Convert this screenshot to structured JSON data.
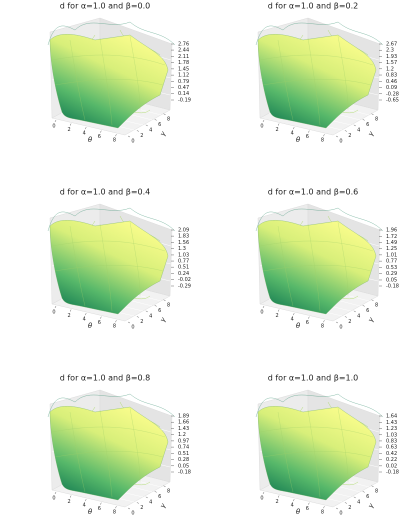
{
  "chart_data": [
    {
      "type": "surface",
      "title": "d for α=1.0 and β=0.0",
      "xlabel": "θ",
      "ylabel": "γ",
      "xlim": [
        0,
        9
      ],
      "xticks": [
        0,
        2,
        4,
        6,
        8
      ],
      "ylim": [
        0,
        9
      ],
      "yticks": [
        0,
        2,
        4,
        6,
        8
      ],
      "zlim": [
        -0.19,
        2.76
      ],
      "zticks": [
        2.76,
        2.44,
        2.11,
        1.78,
        1.45,
        1.12,
        0.79,
        0.47,
        0.14,
        -0.19
      ]
    },
    {
      "type": "surface",
      "title": "d for α=1.0 and β=0.2",
      "xlabel": "θ",
      "ylabel": "γ",
      "xlim": [
        0,
        9
      ],
      "xticks": [
        0,
        2,
        4,
        6,
        8
      ],
      "ylim": [
        0,
        9
      ],
      "yticks": [
        0,
        2,
        4,
        6,
        8
      ],
      "zlim": [
        -0.65,
        2.67
      ],
      "zticks": [
        2.67,
        2.3,
        1.93,
        1.57,
        1.2,
        0.83,
        0.46,
        0.09,
        -0.28,
        -0.65
      ]
    },
    {
      "type": "surface",
      "title": "d for α=1.0 and β=0.4",
      "xlabel": "θ",
      "ylabel": "γ",
      "xlim": [
        0,
        9
      ],
      "xticks": [
        0,
        2,
        4,
        6,
        8
      ],
      "ylim": [
        0,
        9
      ],
      "yticks": [
        0,
        2,
        4,
        6,
        8
      ],
      "zlim": [
        -0.29,
        2.09
      ],
      "zticks": [
        2.09,
        1.83,
        1.56,
        1.3,
        1.03,
        0.77,
        0.51,
        0.24,
        -0.02,
        -0.29
      ]
    },
    {
      "type": "surface",
      "title": "d for α=1.0 and β=0.6",
      "xlabel": "θ",
      "ylabel": "γ",
      "xlim": [
        0,
        9
      ],
      "xticks": [
        0,
        2,
        4,
        6,
        8
      ],
      "ylim": [
        0,
        9
      ],
      "yticks": [
        0,
        2,
        4,
        6,
        8
      ],
      "zlim": [
        -0.18,
        1.96
      ],
      "zticks": [
        1.96,
        1.72,
        1.49,
        1.25,
        1.01,
        0.77,
        0.53,
        0.29,
        0.05,
        -0.18
      ]
    },
    {
      "type": "surface",
      "title": "d for α=1.0 and β=0.8",
      "xlabel": "θ",
      "ylabel": "γ",
      "xlim": [
        0,
        9
      ],
      "xticks": [
        0,
        2,
        4,
        6,
        8
      ],
      "ylim": [
        0,
        9
      ],
      "yticks": [
        0,
        2,
        4,
        6,
        8
      ],
      "zlim": [
        -0.18,
        1.89
      ],
      "zticks": [
        1.89,
        1.66,
        1.43,
        1.2,
        0.97,
        0.74,
        0.51,
        0.28,
        0.05,
        -0.18
      ]
    },
    {
      "type": "surface",
      "title": "d for α=1.0 and β=1.0",
      "xlabel": "θ",
      "ylabel": "γ",
      "xlim": [
        0,
        9
      ],
      "xticks": [
        0,
        2,
        4,
        6,
        8
      ],
      "ylim": [
        0,
        9
      ],
      "yticks": [
        0,
        2,
        4,
        6,
        8
      ],
      "zlim": [
        -0.18,
        1.64
      ],
      "zticks": [
        1.64,
        1.43,
        1.23,
        1.03,
        0.83,
        0.63,
        0.42,
        0.22,
        0.02,
        -0.18
      ]
    }
  ]
}
